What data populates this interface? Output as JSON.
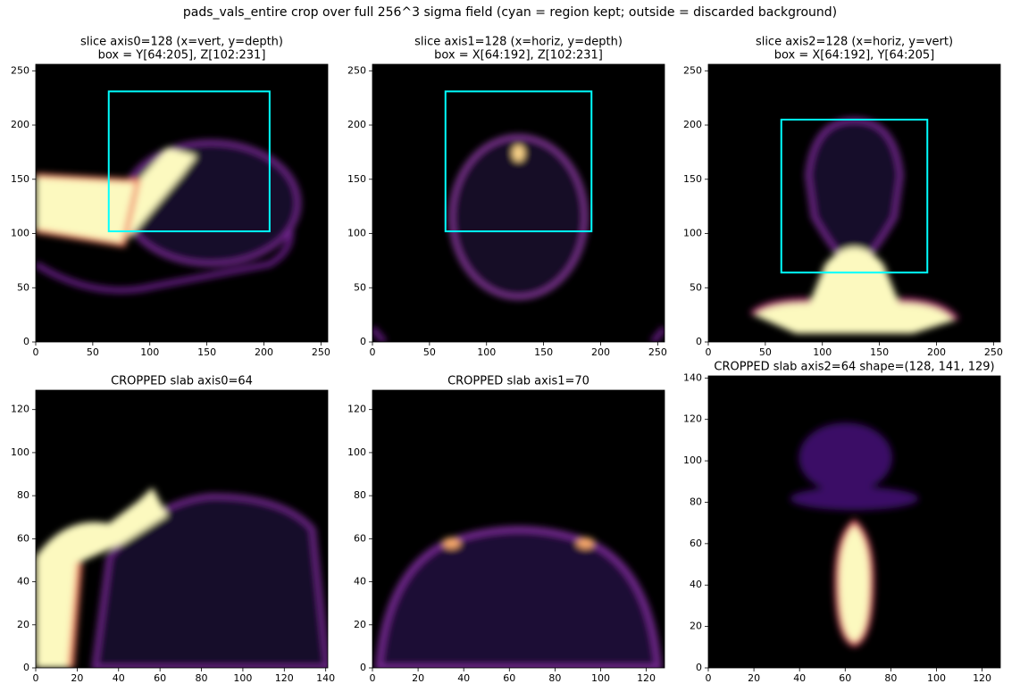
{
  "figure_title": "pads_vals_entire crop over full 256^3 sigma field (cyan = region kept; outside = discarded background)",
  "chart_data": [
    {
      "type": "heatmap",
      "title": [
        "slice axis0=128  (x=vert, y=depth)",
        "box = Y[64:205], Z[102:231]"
      ],
      "xlim": [
        0,
        256
      ],
      "ylim": [
        0,
        256
      ],
      "xticks": [
        0,
        50,
        100,
        150,
        200,
        250
      ],
      "yticks": [
        0,
        50,
        100,
        150,
        200,
        250
      ],
      "box": {
        "x": [
          64,
          205
        ],
        "y": [
          102,
          231
        ],
        "color": "#00ffff"
      }
    },
    {
      "type": "heatmap",
      "title": [
        "slice axis1=128  (x=horiz, y=depth)",
        "box = X[64:192], Z[102:231]"
      ],
      "xlim": [
        0,
        256
      ],
      "ylim": [
        0,
        256
      ],
      "xticks": [
        0,
        50,
        100,
        150,
        200,
        250
      ],
      "yticks": [
        0,
        50,
        100,
        150,
        200,
        250
      ],
      "box": {
        "x": [
          64,
          192
        ],
        "y": [
          102,
          231
        ],
        "color": "#00ffff"
      }
    },
    {
      "type": "heatmap",
      "title": [
        "slice axis2=128  (x=horiz, y=vert)",
        "box = X[64:192], Y[64:205]"
      ],
      "xlim": [
        0,
        256
      ],
      "ylim": [
        0,
        256
      ],
      "xticks": [
        0,
        50,
        100,
        150,
        200,
        250
      ],
      "yticks": [
        0,
        50,
        100,
        150,
        200,
        250
      ],
      "box": {
        "x": [
          64,
          192
        ],
        "y": [
          64,
          205
        ],
        "color": "#00ffff"
      }
    },
    {
      "type": "heatmap",
      "title": [
        "CROPPED slab axis0=64"
      ],
      "xlim": [
        0,
        141
      ],
      "ylim": [
        0,
        129
      ],
      "xticks": [
        0,
        20,
        40,
        60,
        80,
        100,
        120,
        140
      ],
      "yticks": [
        0,
        20,
        40,
        60,
        80,
        100,
        120
      ]
    },
    {
      "type": "heatmap",
      "title": [
        "CROPPED slab axis1=70"
      ],
      "xlim": [
        0,
        128
      ],
      "ylim": [
        0,
        129
      ],
      "xticks": [
        0,
        20,
        40,
        60,
        80,
        100,
        120
      ],
      "yticks": [
        0,
        20,
        40,
        60,
        80,
        100,
        120
      ]
    },
    {
      "type": "heatmap",
      "title": [
        "CROPPED slab axis2=64  shape=(128, 141, 129)"
      ],
      "xlim": [
        0,
        128
      ],
      "ylim": [
        0,
        141
      ],
      "xticks": [
        0,
        20,
        40,
        60,
        80,
        100,
        120
      ],
      "yticks": [
        0,
        20,
        40,
        60,
        80,
        100,
        120,
        140
      ]
    }
  ]
}
